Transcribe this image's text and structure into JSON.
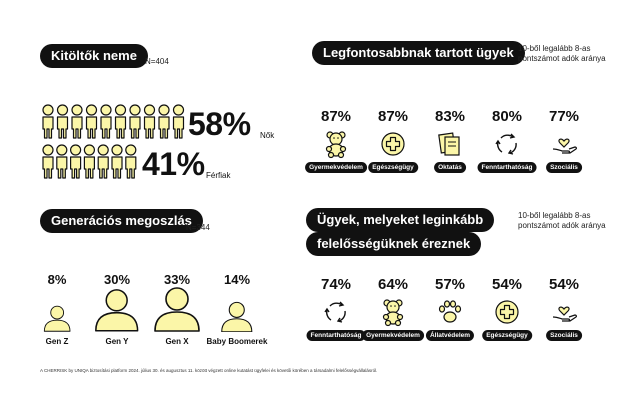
{
  "respondents": {
    "title": "Kitöltők neme",
    "n": "N=404",
    "women_pct": "58%",
    "women_label": "Nők",
    "men_pct": "41%",
    "men_label": "Férfiak"
  },
  "generations": {
    "title": "Generációs megoszlás",
    "n": "N=344",
    "items": [
      {
        "pct": "8%",
        "label": "Gen Z",
        "value": 8
      },
      {
        "pct": "30%",
        "label": "Gen Y",
        "value": 30
      },
      {
        "pct": "33%",
        "label": "Gen X",
        "value": 33
      },
      {
        "pct": "14%",
        "label": "Baby Boomerek",
        "value": 14
      }
    ]
  },
  "important": {
    "title": "Legfontosabbnak tartott ügyek",
    "note_line1": "10-ből legalább 8-as",
    "note_line2": "pontszámot adók aránya",
    "items": [
      {
        "pct": "87%",
        "label": "Gyermekvédelem",
        "icon": "teddy-bear-icon",
        "value": 87
      },
      {
        "pct": "87%",
        "label": "Egészségügy",
        "icon": "medical-cross-icon",
        "value": 87
      },
      {
        "pct": "83%",
        "label": "Oktatás",
        "icon": "books-icon",
        "value": 83
      },
      {
        "pct": "80%",
        "label": "Fenntarthatóság",
        "icon": "recycle-icon",
        "value": 80
      },
      {
        "pct": "77%",
        "label": "Szociális",
        "icon": "helping-hand-icon",
        "value": 77
      }
    ]
  },
  "responsible": {
    "title_line1": "Ügyek, melyeket leginkább",
    "title_line2": "felelősségüknek éreznek",
    "note_line1": "10-ből legalább 8-as",
    "note_line2": "pontszámot adók aránya",
    "items": [
      {
        "pct": "74%",
        "label": "Fenntarthatóság",
        "icon": "recycle-icon",
        "value": 74
      },
      {
        "pct": "64%",
        "label": "Gyermekvédelem",
        "icon": "teddy-bear-icon",
        "value": 64
      },
      {
        "pct": "57%",
        "label": "Állatvédelem",
        "icon": "paw-icon",
        "value": 57
      },
      {
        "pct": "54%",
        "label": "Egészségügy",
        "icon": "medical-cross-icon",
        "value": 54
      },
      {
        "pct": "54%",
        "label": "Szociális",
        "icon": "helping-hand-icon",
        "value": 54
      }
    ]
  },
  "footer": "A CHERRISK by UNIQA biztosítási platform 2024. július 30. és augusztus 11. között végzett online kutatást ügyfelei és követői körében a társadalmi felelősségvállalásról.",
  "colors": {
    "accent_fill": "#fbf6a8",
    "ink": "#111111"
  },
  "chart_data": [
    {
      "type": "bar",
      "categories": [
        "Nők",
        "Férfiak"
      ],
      "values": [
        58,
        41
      ]
    },
    {
      "type": "bar",
      "categories": [
        "Gen Z",
        "Gen Y",
        "Gen X",
        "Baby Boomerek"
      ],
      "values": [
        8,
        30,
        33,
        14
      ]
    },
    {
      "type": "bar",
      "categories": [
        "Gyermekvédelem",
        "Egészségügy",
        "Oktatás",
        "Fenntarthatóság",
        "Szociális"
      ],
      "values": [
        87,
        87,
        83,
        80,
        77
      ]
    },
    {
      "type": "bar",
      "categories": [
        "Fenntarthatóság",
        "Gyermekvédelem",
        "Állatvédelem",
        "Egészségügy",
        "Szociális"
      ],
      "values": [
        74,
        64,
        57,
        54,
        54
      ]
    }
  ]
}
